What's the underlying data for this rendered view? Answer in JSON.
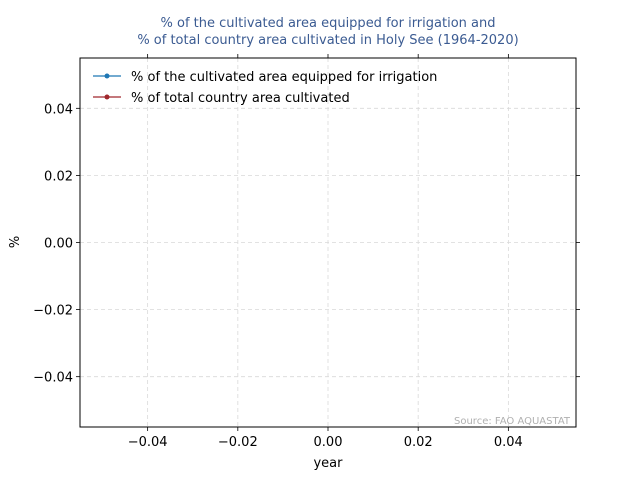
{
  "chart_data": {
    "type": "line",
    "title_line1": "% of the cultivated area equipped for irrigation and",
    "title_line2": "% of total country area cultivated in Holy See (1964-2020)",
    "xlabel": "year",
    "ylabel": "%",
    "xlim": [
      -0.055,
      0.055
    ],
    "ylim": [
      -0.055,
      0.055
    ],
    "xticks": [
      -0.04,
      -0.02,
      0.0,
      0.02,
      0.04
    ],
    "yticks": [
      -0.04,
      -0.02,
      0.0,
      0.02,
      0.04
    ],
    "xtick_labels": [
      "−0.04",
      "−0.02",
      "0.00",
      "0.02",
      "0.04"
    ],
    "ytick_labels": [
      "−0.04",
      "−0.02",
      "0.00",
      "0.02",
      "0.04"
    ],
    "grid": true,
    "legend_position": "top-left",
    "series": [
      {
        "name": "% of the cultivated area equipped for irrigation",
        "color": "#1f77b4",
        "x": [],
        "values": []
      },
      {
        "name": "% of total country area cultivated",
        "color": "#a0282d",
        "x": [],
        "values": []
      }
    ],
    "source": "Source: FAO AQUASTAT",
    "title_color": "#3b5b92"
  }
}
